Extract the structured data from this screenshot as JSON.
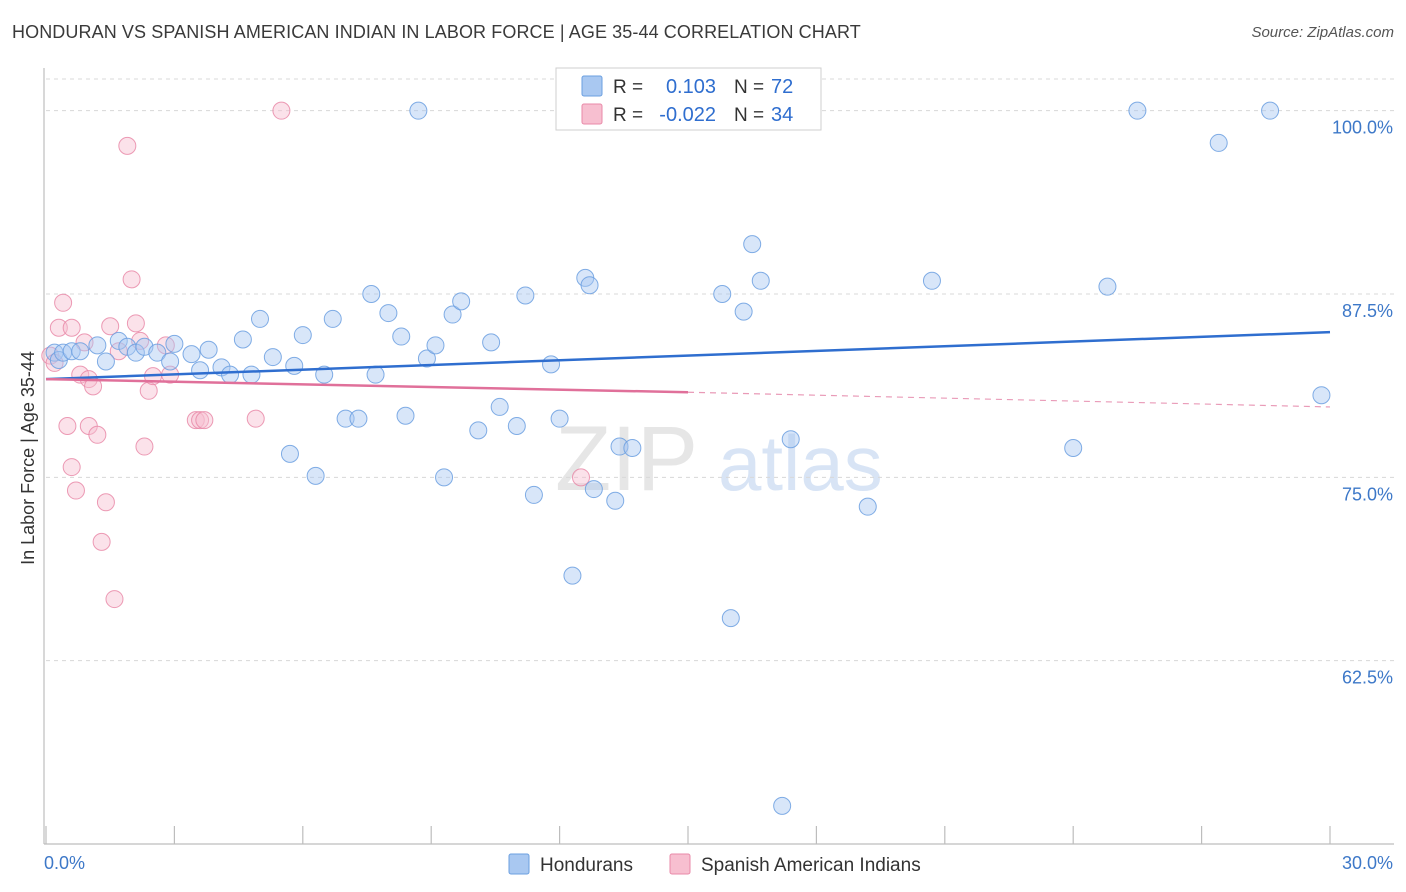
{
  "header": {
    "title": "HONDURAN VS SPANISH AMERICAN INDIAN IN LABOR FORCE | AGE 35-44 CORRELATION CHART",
    "source": "Source: ZipAtlas.com"
  },
  "watermark": {
    "zip": "ZIP",
    "atlas": "atlas"
  },
  "colors": {
    "blue": "#a9c8f1",
    "blue_stroke": "#6b9fe0",
    "blue_line": "#2f6ecf",
    "pink": "#f7bfd0",
    "pink_stroke": "#e98aa8",
    "pink_line": "#e0709a",
    "axis_text": "#3d78c8",
    "grid": "#d8d8d8"
  },
  "stats": [
    {
      "r_label": "R =",
      "r_value": "0.103",
      "n_label": "N =",
      "n_value": "72"
    },
    {
      "r_label": "R =",
      "r_value": "-0.022",
      "n_label": "N =",
      "n_value": "34"
    }
  ],
  "chart_data": {
    "type": "scatter",
    "title": "HONDURAN VS SPANISH AMERICAN INDIAN IN LABOR FORCE | AGE 35-44 CORRELATION CHART",
    "ylabel": "In Labor Force | Age 35-44",
    "xlabel": "",
    "xlim": [
      0,
      30
    ],
    "ylim": [
      50,
      102.5
    ],
    "x_tick_labels": [
      "0.0%",
      "30.0%"
    ],
    "y_ticks": [
      62.5,
      75.0,
      87.5,
      100.0
    ],
    "y_tick_labels": [
      "62.5%",
      "75.0%",
      "87.5%",
      "100.0%"
    ],
    "grid": true,
    "legend_position": "bottom-center",
    "series": [
      {
        "name": "Hondurans",
        "color": "#a9c8f1",
        "trend": {
          "x": [
            0,
            30
          ],
          "y": [
            81.7,
            84.9
          ]
        },
        "points": [
          [
            0.2,
            83.5
          ],
          [
            0.3,
            83.0
          ],
          [
            0.4,
            83.5
          ],
          [
            0.6,
            83.6
          ],
          [
            0.8,
            83.6
          ],
          [
            1.2,
            84.0
          ],
          [
            1.4,
            82.9
          ],
          [
            1.7,
            84.3
          ],
          [
            1.9,
            83.9
          ],
          [
            2.1,
            83.5
          ],
          [
            2.3,
            83.9
          ],
          [
            2.6,
            83.5
          ],
          [
            2.9,
            82.9
          ],
          [
            3.0,
            84.1
          ],
          [
            3.4,
            83.4
          ],
          [
            3.6,
            82.3
          ],
          [
            3.8,
            83.7
          ],
          [
            4.1,
            82.5
          ],
          [
            4.3,
            82.0
          ],
          [
            4.6,
            84.4
          ],
          [
            4.8,
            82.0
          ],
          [
            5.0,
            85.8
          ],
          [
            5.3,
            83.2
          ],
          [
            5.7,
            76.6
          ],
          [
            5.8,
            82.6
          ],
          [
            6.0,
            84.7
          ],
          [
            6.3,
            75.1
          ],
          [
            6.5,
            82.0
          ],
          [
            6.7,
            85.8
          ],
          [
            7.0,
            79.0
          ],
          [
            7.3,
            79.0
          ],
          [
            7.6,
            87.5
          ],
          [
            7.7,
            82.0
          ],
          [
            8.0,
            86.2
          ],
          [
            8.3,
            84.6
          ],
          [
            8.4,
            79.2
          ],
          [
            8.7,
            100.0
          ],
          [
            8.9,
            83.1
          ],
          [
            9.1,
            84.0
          ],
          [
            9.3,
            75.0
          ],
          [
            9.5,
            86.1
          ],
          [
            9.7,
            87.0
          ],
          [
            10.1,
            78.2
          ],
          [
            10.4,
            84.2
          ],
          [
            10.6,
            79.8
          ],
          [
            11.0,
            78.5
          ],
          [
            11.2,
            87.4
          ],
          [
            11.4,
            73.8
          ],
          [
            11.8,
            82.7
          ],
          [
            12.0,
            79.0
          ],
          [
            12.3,
            68.3
          ],
          [
            12.6,
            88.6
          ],
          [
            12.7,
            88.1
          ],
          [
            12.8,
            74.2
          ],
          [
            13.3,
            73.4
          ],
          [
            13.4,
            77.1
          ],
          [
            13.7,
            77.0
          ],
          [
            15.8,
            87.5
          ],
          [
            16.0,
            65.4
          ],
          [
            16.3,
            86.3
          ],
          [
            16.5,
            90.9
          ],
          [
            16.7,
            88.4
          ],
          [
            17.2,
            52.6
          ],
          [
            17.4,
            77.6
          ],
          [
            19.2,
            73.0
          ],
          [
            20.7,
            88.4
          ],
          [
            24.0,
            77.0
          ],
          [
            24.8,
            88.0
          ],
          [
            25.5,
            100.0
          ],
          [
            27.4,
            97.8
          ],
          [
            28.6,
            100.0
          ],
          [
            29.8,
            80.6
          ]
        ]
      },
      {
        "name": "Spanish American Indians",
        "color": "#f7bfd0",
        "trend": {
          "x": [
            0,
            15
          ],
          "y": [
            81.7,
            80.8
          ]
        },
        "trend_dashed": {
          "x": [
            15,
            30
          ],
          "y": [
            80.8,
            79.8
          ]
        },
        "points": [
          [
            0.1,
            83.3
          ],
          [
            0.2,
            82.8
          ],
          [
            0.3,
            85.2
          ],
          [
            0.4,
            86.9
          ],
          [
            0.5,
            78.5
          ],
          [
            0.6,
            85.2
          ],
          [
            0.6,
            75.7
          ],
          [
            0.7,
            74.1
          ],
          [
            0.8,
            82.0
          ],
          [
            0.9,
            84.2
          ],
          [
            1.0,
            81.7
          ],
          [
            1.0,
            78.5
          ],
          [
            1.1,
            81.2
          ],
          [
            1.2,
            77.9
          ],
          [
            1.3,
            70.6
          ],
          [
            1.4,
            73.3
          ],
          [
            1.5,
            85.3
          ],
          [
            1.6,
            66.7
          ],
          [
            1.7,
            83.6
          ],
          [
            1.9,
            97.6
          ],
          [
            2.0,
            88.5
          ],
          [
            2.1,
            85.5
          ],
          [
            2.2,
            84.3
          ],
          [
            2.3,
            77.1
          ],
          [
            2.4,
            80.9
          ],
          [
            2.5,
            81.9
          ],
          [
            2.8,
            84.0
          ],
          [
            2.9,
            82.0
          ],
          [
            3.5,
            78.9
          ],
          [
            3.6,
            78.9
          ],
          [
            3.7,
            78.9
          ],
          [
            4.9,
            79.0
          ],
          [
            5.5,
            100.0
          ],
          [
            12.5,
            75.0
          ]
        ]
      }
    ]
  },
  "legend": [
    {
      "label": "Hondurans"
    },
    {
      "label": "Spanish American Indians"
    }
  ]
}
